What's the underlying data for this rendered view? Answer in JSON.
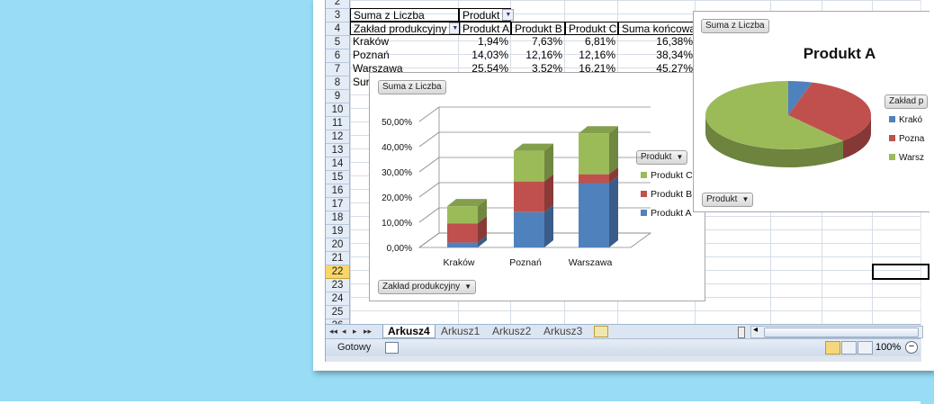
{
  "rows": [
    "2",
    "3",
    "4",
    "5",
    "6",
    "7",
    "8",
    "9",
    "10",
    "11",
    "12",
    "13",
    "14",
    "15",
    "16",
    "17",
    "18",
    "19",
    "20",
    "21",
    "22",
    "23",
    "24",
    "25",
    "26"
  ],
  "selected_row": "22",
  "pivot": {
    "header_label": "Suma z Liczba",
    "col_field": "Produkt",
    "row_field": "Zakład produkcyjny",
    "columns": [
      "Produkt A",
      "Produkt B",
      "Produkt C",
      "Suma końcowa"
    ],
    "rows": [
      {
        "label": "Kraków",
        "values": [
          "1,94%",
          "7,63%",
          "6,81%",
          "16,38%"
        ]
      },
      {
        "label": "Poznań",
        "values": [
          "14,03%",
          "12,16%",
          "12,16%",
          "38,34%"
        ]
      },
      {
        "label": "Warszawa",
        "values": [
          "25,54%",
          "3,52%",
          "16,21%",
          "45,27%"
        ]
      }
    ],
    "total_label_partial": "Sur"
  },
  "bar_chart": {
    "value_button": "Suma z Liczba",
    "legend_button": "Produkt",
    "axis_button": "Zakład produkcyjny"
  },
  "pie_chart": {
    "value_button": "Suma z Liczba",
    "legend_button": "Zakład p",
    "axis_button": "Produkt"
  },
  "chart_data": [
    {
      "type": "bar",
      "stacked": true,
      "three_d": true,
      "categories": [
        "Kraków",
        "Poznań",
        "Warszawa"
      ],
      "series": [
        {
          "name": "Produkt A",
          "values": [
            1.94,
            14.03,
            25.54
          ],
          "color": "#4f81bd"
        },
        {
          "name": "Produkt B",
          "values": [
            7.63,
            12.16,
            3.52
          ],
          "color": "#c0504d"
        },
        {
          "name": "Produkt C",
          "values": [
            6.81,
            12.16,
            16.21
          ],
          "color": "#9bbb59"
        }
      ],
      "y_ticks": [
        "0,00%",
        "10,00%",
        "20,00%",
        "30,00%",
        "40,00%",
        "50,00%"
      ],
      "ylim": [
        0,
        50
      ],
      "legend_order": [
        "Produkt C",
        "Produkt B",
        "Produkt A"
      ],
      "legend_position": "right",
      "grid": true
    },
    {
      "type": "pie",
      "three_d": true,
      "title": "Produkt A",
      "categories": [
        "Kraków",
        "Poznań",
        "Warszawa"
      ],
      "values": [
        1.94,
        14.03,
        25.54
      ],
      "colors": [
        "#4f81bd",
        "#c0504d",
        "#9bbb59"
      ],
      "legend_labels": [
        "Krakó",
        "Pozna",
        "Warsz"
      ],
      "legend_position": "right"
    }
  ],
  "sheet_tabs": [
    "Arkusz4",
    "Arkusz1",
    "Arkusz2",
    "Arkusz3"
  ],
  "active_tab": "Arkusz4",
  "status": {
    "ready": "Gotowy",
    "zoom": "100%"
  },
  "nav_arrows": [
    "◂◂",
    "◂",
    "▸",
    "▸▸"
  ]
}
